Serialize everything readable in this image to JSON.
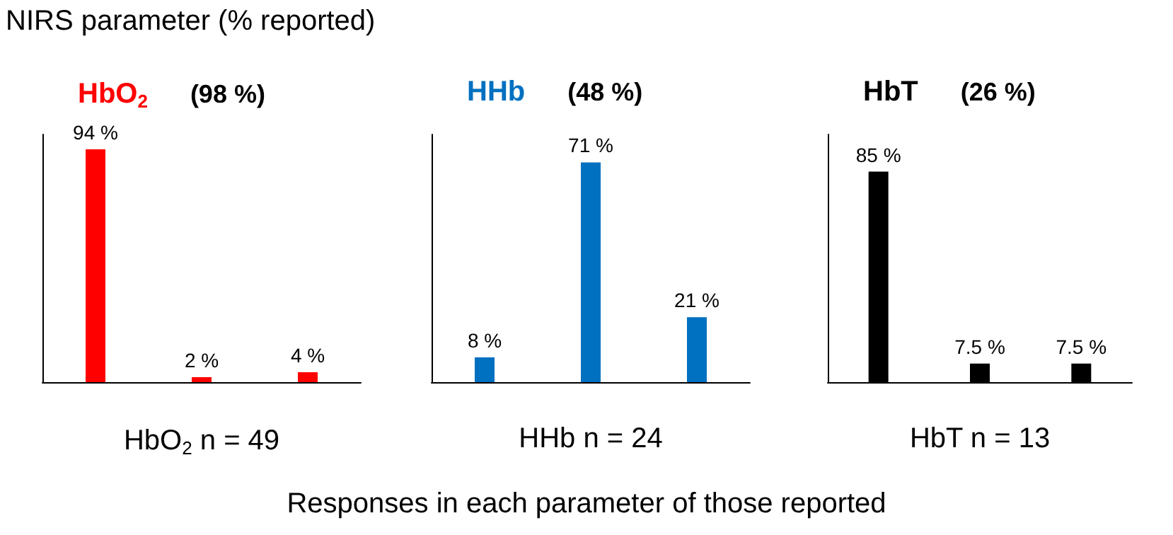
{
  "chart_data": [
    {
      "type": "bar",
      "title": "HbO$_{2}$",
      "subtitle": "(98 %)",
      "xlabel": "HbO$_{2}$ n = 49",
      "annotations": [
        "NIRS parameter (% reported)",
        "Responses in each parameter of those reported"
      ],
      "categories": [
        null,
        null,
        null
      ],
      "values": [
        94,
        2,
        4
      ],
      "value_labels": [
        "94 %",
        "2 %",
        "4 %"
      ],
      "color": "#ff0000",
      "tick_labels": false
    },
    {
      "type": "bar",
      "title": "HHb",
      "subtitle": "(48 %)",
      "xlabel": "HHb n = 24",
      "categories": [
        null,
        null,
        null
      ],
      "values": [
        8,
        71,
        21
      ],
      "value_labels": [
        "8 %",
        "71 %",
        "21 %"
      ],
      "color": "#0070c0",
      "tick_labels": false
    },
    {
      "type": "bar",
      "title": "HbT",
      "subtitle": "(26 %)",
      "xlabel": "HbT n = 13",
      "categories": [
        null,
        null,
        null
      ],
      "values": [
        85,
        7.5,
        7.5
      ],
      "value_labels": [
        "85 %",
        "7.5 %",
        "7.5 %"
      ],
      "color": "#000000",
      "tick_labels": false
    }
  ]
}
